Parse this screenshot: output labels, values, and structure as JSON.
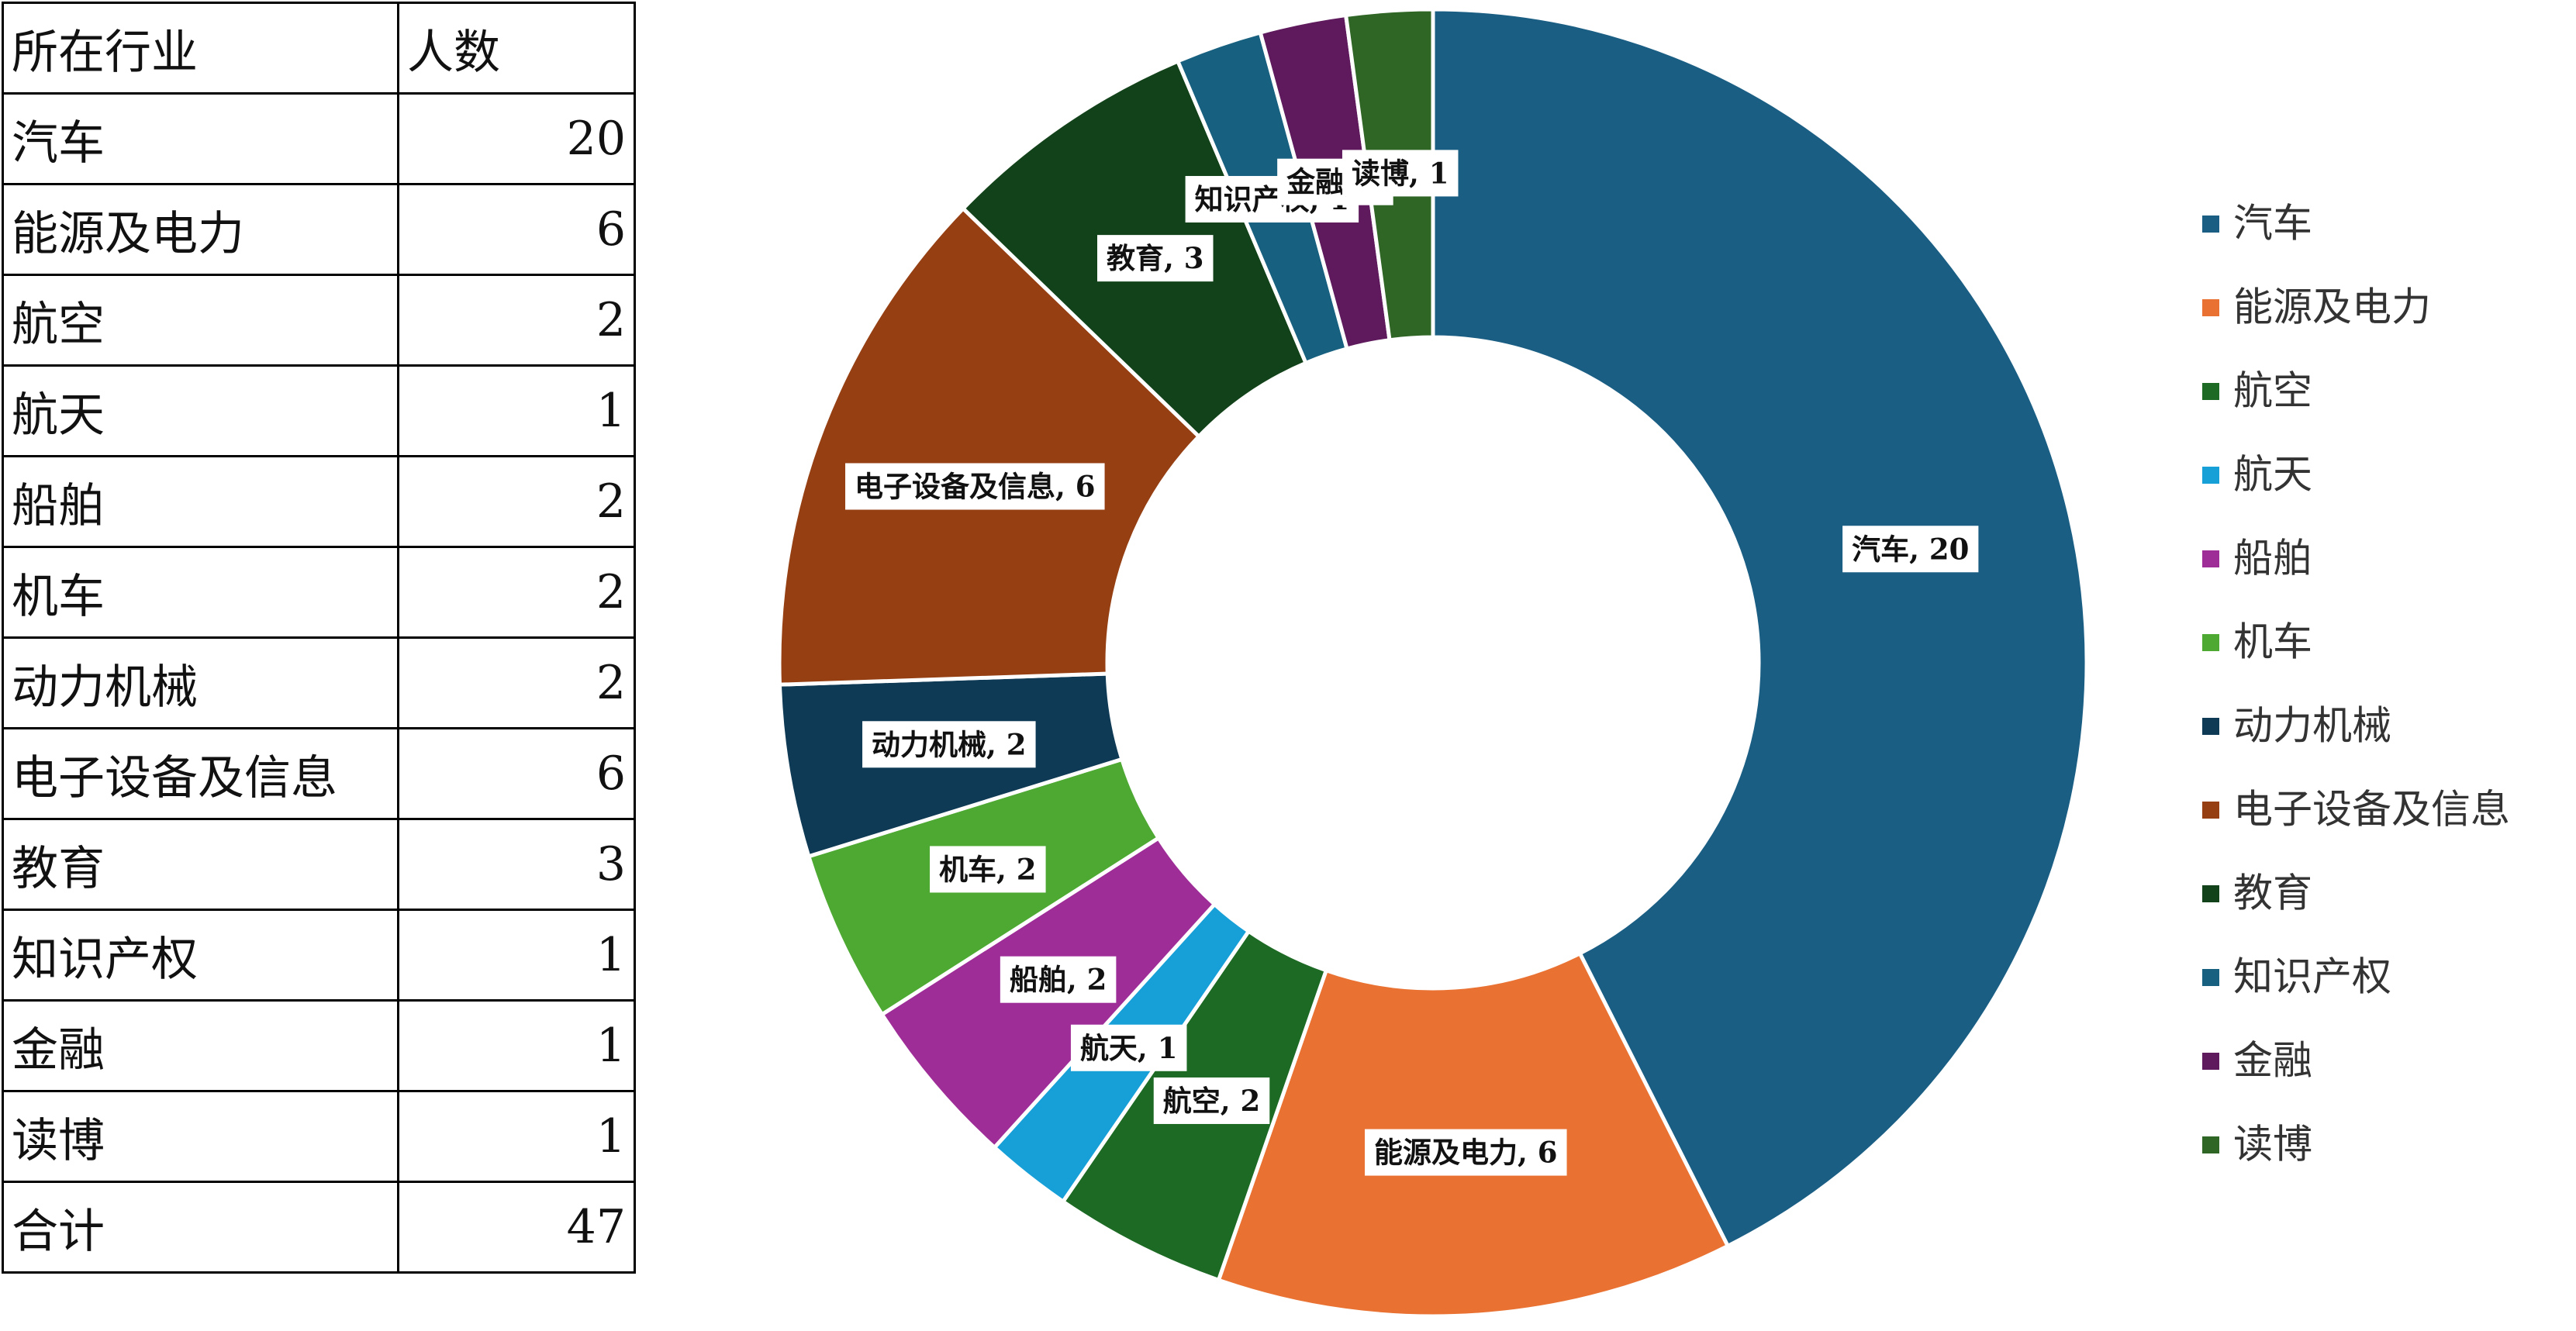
{
  "table": {
    "header": {
      "industry": "所在行业",
      "count": "人数"
    },
    "rows": [
      {
        "industry": "汽车",
        "count": "20"
      },
      {
        "industry": "能源及电力",
        "count": "6"
      },
      {
        "industry": "航空",
        "count": "2"
      },
      {
        "industry": "航天",
        "count": "1"
      },
      {
        "industry": "船舶",
        "count": "2"
      },
      {
        "industry": "机车",
        "count": "2"
      },
      {
        "industry": "动力机械",
        "count": "2"
      },
      {
        "industry": "电子设备及信息",
        "count": "6"
      },
      {
        "industry": "教育",
        "count": "3"
      },
      {
        "industry": "知识产权",
        "count": "1"
      },
      {
        "industry": "金融",
        "count": "1"
      },
      {
        "industry": "读博",
        "count": "1"
      }
    ],
    "total": {
      "label": "合计",
      "count": "47"
    }
  },
  "chart_data": {
    "type": "pie",
    "variant": "donut",
    "title": "",
    "legend_position": "right",
    "slices": [
      {
        "label": "汽车",
        "value": 20,
        "color": "#1A5E84",
        "data_label": "汽车, 20"
      },
      {
        "label": "能源及电力",
        "value": 6,
        "color": "#E97233",
        "data_label": "能源及电力, 6"
      },
      {
        "label": "航空",
        "value": 2,
        "color": "#1D6A25",
        "data_label": "航空, 2"
      },
      {
        "label": "航天",
        "value": 1,
        "color": "#17A0D8",
        "data_label": "航天, 1"
      },
      {
        "label": "船舶",
        "value": 2,
        "color": "#9E2D98",
        "data_label": "船舶, 2"
      },
      {
        "label": "机车",
        "value": 2,
        "color": "#4EA933",
        "data_label": "机车, 2"
      },
      {
        "label": "动力机械",
        "value": 2,
        "color": "#0E3A55",
        "data_label": "动力机械, 2"
      },
      {
        "label": "电子设备及信息",
        "value": 6,
        "color": "#953F12",
        "data_label": "电子设备及信息, 6"
      },
      {
        "label": "教育",
        "value": 3,
        "color": "#124219",
        "data_label": "教育, 3"
      },
      {
        "label": "知识产权",
        "value": 1,
        "color": "#17607F",
        "data_label": "知识产权, 1"
      },
      {
        "label": "金融",
        "value": 1,
        "color": "#5E1A5C",
        "data_label": "金融, 1"
      },
      {
        "label": "读博",
        "value": 1,
        "color": "#2F6525",
        "data_label": "读博, 1"
      }
    ]
  }
}
